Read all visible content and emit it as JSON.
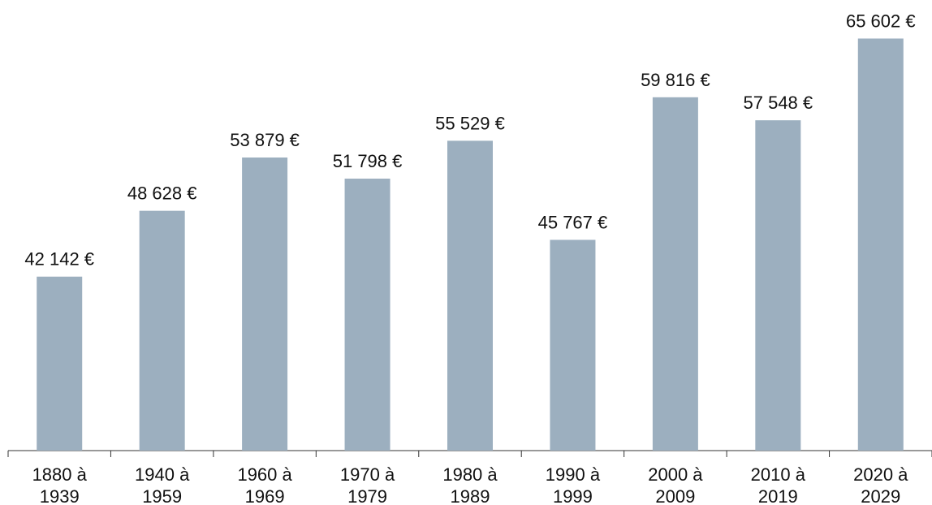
{
  "chart_data": {
    "type": "bar",
    "categories": [
      "1880 à 1939",
      "1940 à 1959",
      "1960 à 1969",
      "1970 à 1979",
      "1980 à 1989",
      "1990 à 1999",
      "2000 à 2009",
      "2010 à 2019",
      "2020 à 2029"
    ],
    "values": [
      42142,
      48628,
      53879,
      51798,
      55529,
      45767,
      59816,
      57548,
      65602
    ],
    "value_labels": [
      "42 142 €",
      "48 628 €",
      "53 879 €",
      "51 798 €",
      "55 529 €",
      "45 767 €",
      "59 816 €",
      "57 548 €",
      "65 602 €"
    ],
    "color": "#9cafbf",
    "ylim": [
      25000,
      67000
    ]
  }
}
